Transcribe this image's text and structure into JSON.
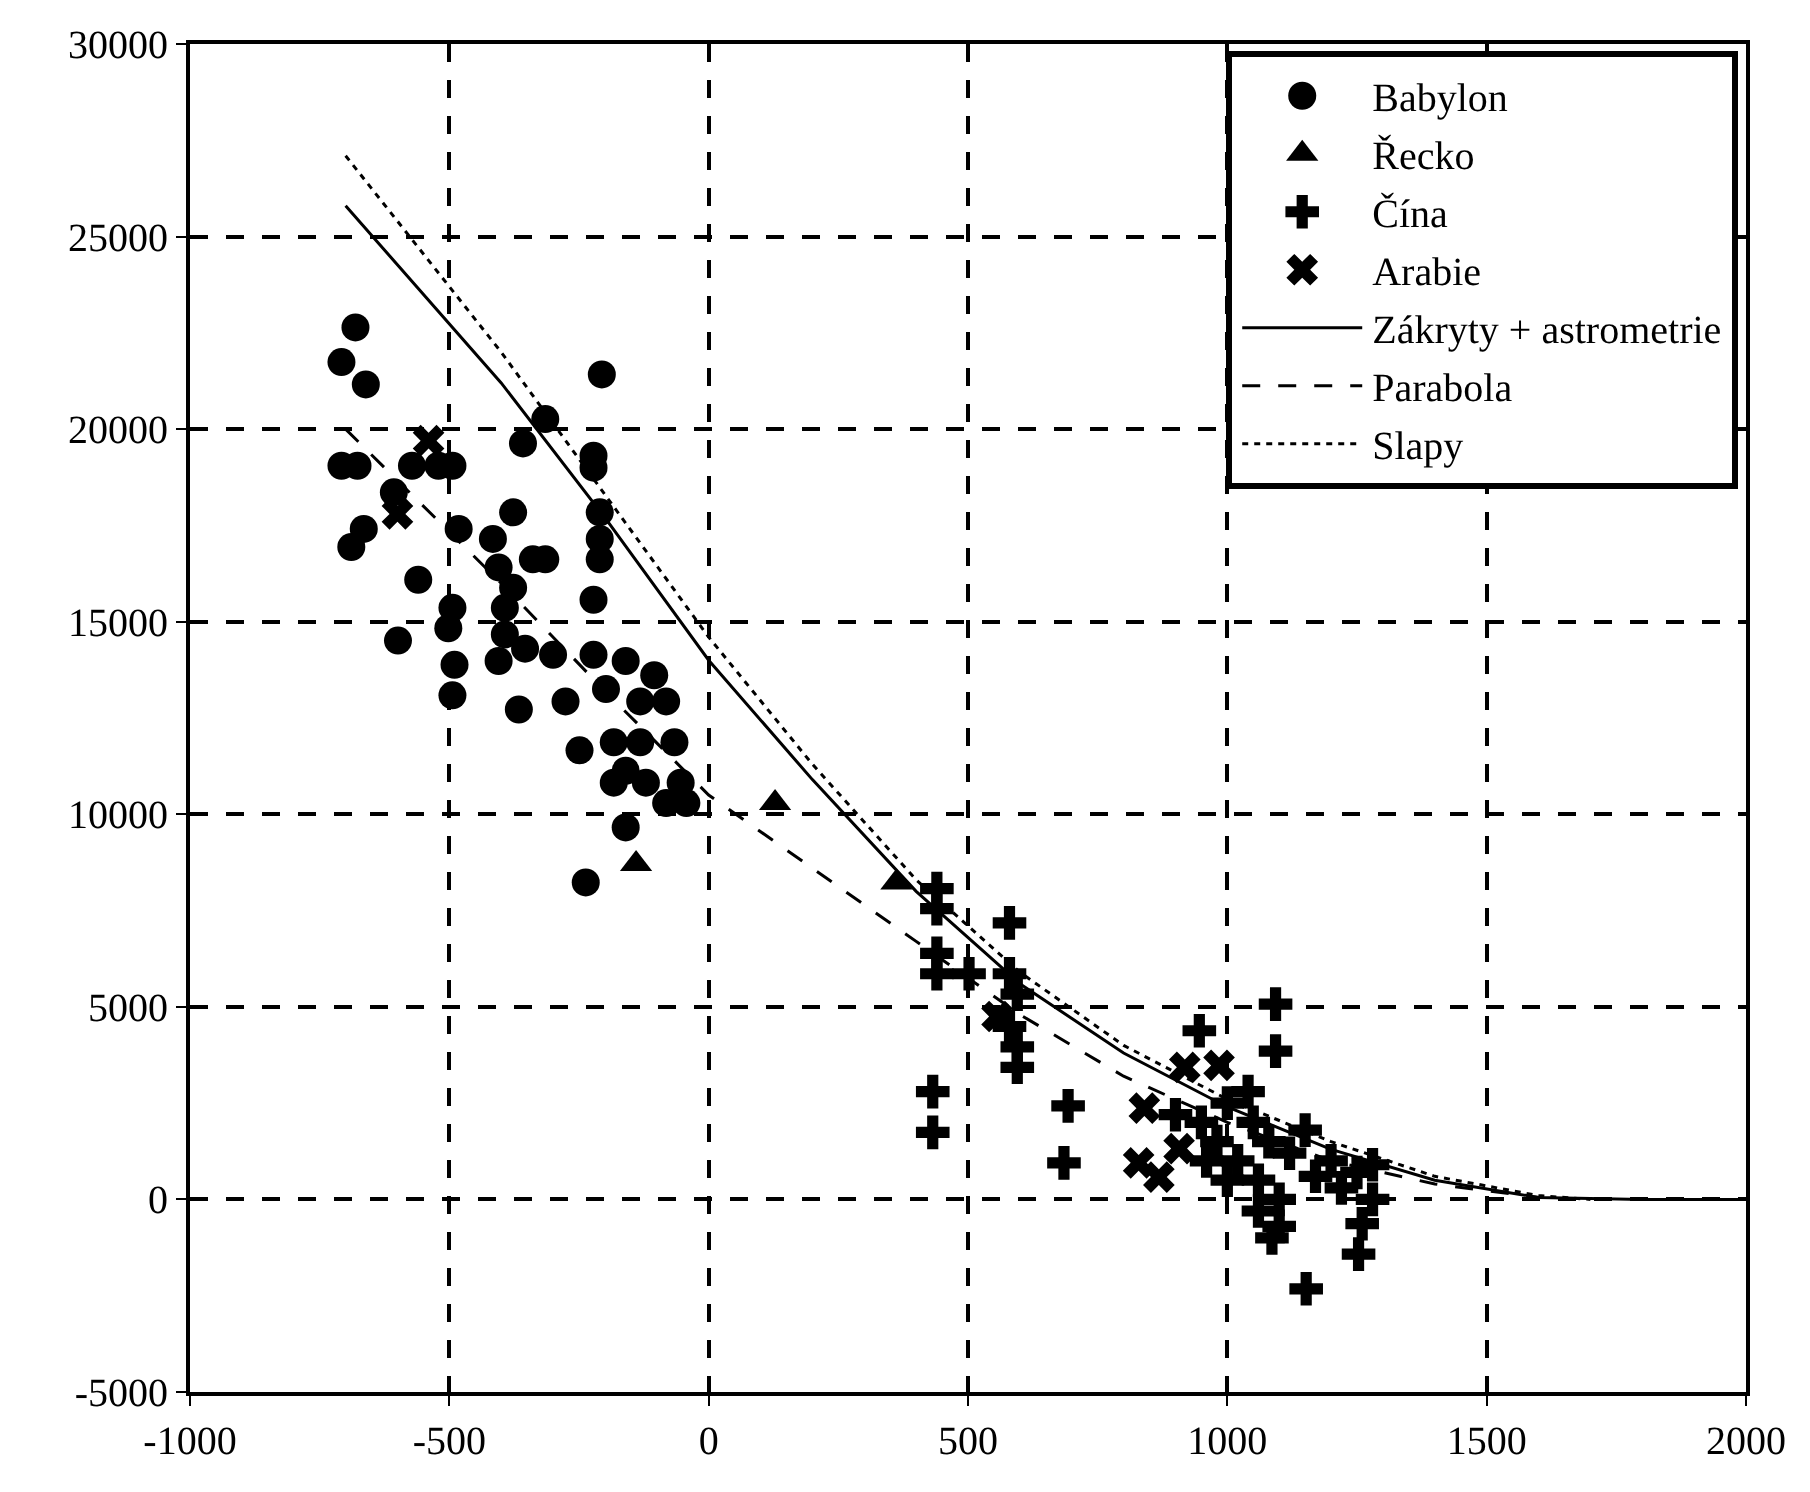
{
  "chart_data": {
    "type": "scatter",
    "xlim": [
      -1000,
      2000
    ],
    "ylim": [
      -5000,
      30000
    ],
    "xticks": [
      -1000,
      -500,
      0,
      500,
      1000,
      1500,
      2000
    ],
    "yticks": [
      -5000,
      0,
      5000,
      10000,
      15000,
      20000,
      25000,
      30000
    ],
    "grid": true,
    "legend": "top right",
    "series": [
      {
        "name": "Babylon",
        "color": "#000000",
        "marker": "circle",
        "x": [
          -681,
          -708,
          -661,
          -206,
          -315,
          -358,
          -222,
          -222,
          -708,
          -677,
          -572,
          -521,
          -494,
          -607,
          -377,
          -665,
          -689,
          -482,
          -210,
          -210,
          -210,
          -416,
          -560,
          -405,
          -377,
          -339,
          -315,
          -222,
          -494,
          -502,
          -599,
          -393,
          -393,
          -354,
          -405,
          -300,
          -490,
          -494,
          -366,
          -276,
          -222,
          -160,
          -105,
          -198,
          -132,
          -82,
          -249,
          -183,
          -132,
          -66,
          -183,
          -121,
          -54,
          -160,
          -82,
          -43,
          -160,
          -237
        ],
        "values": [
          22640,
          21740,
          21160,
          21420,
          20260,
          19630,
          19310,
          19000,
          19050,
          19050,
          19050,
          19050,
          19050,
          18360,
          17840,
          17410,
          16940,
          17410,
          17840,
          17150,
          16620,
          17150,
          16090,
          16410,
          15880,
          16620,
          16620,
          15570,
          15360,
          14830,
          14510,
          15360,
          14670,
          14300,
          13980,
          14140,
          13880,
          13090,
          12720,
          12930,
          14140,
          13980,
          13610,
          13250,
          12930,
          12930,
          11660,
          11870,
          11870,
          11870,
          10820,
          10820,
          10820,
          11130,
          10290,
          10290,
          9660,
          8230
        ]
      },
      {
        "name": "Řecko",
        "color": "#000000",
        "marker": "triangle",
        "x": [
          -140,
          128,
          362
        ],
        "values": [
          8710,
          10290,
          8230
        ]
      },
      {
        "name": "Čína",
        "color": "#000000",
        "marker": "cross",
        "x": [
          440,
          440,
          580,
          440,
          440,
          502,
          580,
          595,
          580,
          595,
          595,
          432,
          432,
          693,
          685,
          946,
          1093,
          1093,
          1086,
          1152,
          1253,
          1260,
          950,
          980,
          1000,
          1020,
          1050,
          1060,
          1080,
          1100,
          1100,
          1120,
          1150,
          1170,
          1200,
          1220,
          1250,
          1280,
          1280,
          1000,
          960,
          1040,
          1060,
          900
        ],
        "values": [
          8070,
          7550,
          7180,
          6390,
          5860,
          5860,
          5860,
          5330,
          4490,
          3960,
          3430,
          2800,
          1740,
          2430,
          950,
          4380,
          5070,
          3850,
          -1000,
          -2320,
          -1420,
          -630,
          2000,
          1500,
          2500,
          1000,
          2000,
          500,
          1500,
          0,
          -700,
          1200,
          1800,
          600,
          1000,
          300,
          700,
          900,
          0,
          500,
          1000,
          2800,
          -300,
          2200
        ]
      },
      {
        "name": "Arabie",
        "color": "#000000",
        "marker": "x",
        "x": [
          840,
          829,
          918,
          984,
          907,
          868,
          556,
          -540,
          -600
        ],
        "values": [
          2370,
          950,
          3430,
          3480,
          1320,
          580,
          4750,
          19700,
          17800
        ]
      },
      {
        "name": "Zákryty + astrometrie",
        "type": "line",
        "color": "#000000",
        "line_style": "solid",
        "x": [
          -700,
          -400,
          -200,
          0,
          200,
          400,
          600,
          800,
          1000,
          1200,
          1400,
          1600,
          1800,
          2000
        ],
        "values": [
          25800,
          21200,
          17700,
          14000,
          10900,
          8000,
          5600,
          3800,
          2400,
          1300,
          500,
          50,
          0,
          0
        ]
      },
      {
        "name": "Parabola",
        "type": "line",
        "color": "#000000",
        "line_style": "dashed",
        "x": [
          -700,
          -400,
          -200,
          0,
          200,
          400,
          600,
          800,
          1000,
          1200,
          1400,
          1600
        ],
        "values": [
          20000,
          16000,
          13200,
          10500,
          8600,
          6700,
          4800,
          3200,
          2000,
          1000,
          400,
          50
        ]
      },
      {
        "name": "Slapy",
        "type": "line",
        "color": "#000000",
        "line_style": "dotted",
        "x": [
          -700,
          -400,
          -200,
          0,
          200,
          400,
          600,
          800,
          1000,
          1200,
          1400,
          1600,
          1700
        ],
        "values": [
          27100,
          22000,
          18300,
          14600,
          11300,
          8300,
          5900,
          4000,
          2600,
          1500,
          600,
          100,
          0
        ]
      }
    ]
  }
}
